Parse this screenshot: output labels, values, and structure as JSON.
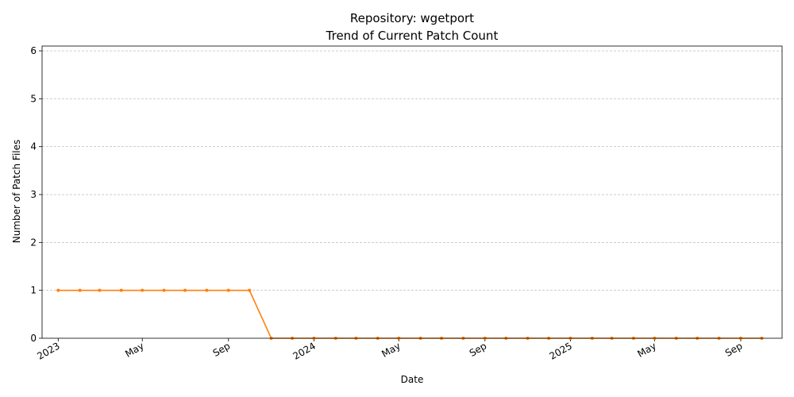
{
  "chart_data": {
    "type": "line",
    "title": "Repository: wgetport",
    "subtitle": "Trend of Current Patch Count",
    "xlabel": "Date",
    "ylabel": "Number of Patch Files",
    "ylim": [
      0,
      6.1
    ],
    "yticks": [
      0,
      1,
      2,
      3,
      4,
      5,
      6
    ],
    "xlim": [
      "2022-12-09",
      "2025-10-30"
    ],
    "xticks": [
      {
        "date": "2023-01-01",
        "label": "2023"
      },
      {
        "date": "2023-05-01",
        "label": "May"
      },
      {
        "date": "2023-09-01",
        "label": "Sep"
      },
      {
        "date": "2024-01-01",
        "label": "2024"
      },
      {
        "date": "2024-05-01",
        "label": "May"
      },
      {
        "date": "2024-09-01",
        "label": "Sep"
      },
      {
        "date": "2025-01-01",
        "label": "2025"
      },
      {
        "date": "2025-05-01",
        "label": "May"
      },
      {
        "date": "2025-09-01",
        "label": "Sep"
      }
    ],
    "grid": "y",
    "line_color": "#ff7f0e",
    "series": [
      {
        "points": [
          {
            "x": "2023-01-01",
            "y": 1
          },
          {
            "x": "2023-02-01",
            "y": 1
          },
          {
            "x": "2023-03-01",
            "y": 1
          },
          {
            "x": "2023-04-01",
            "y": 1
          },
          {
            "x": "2023-05-01",
            "y": 1
          },
          {
            "x": "2023-06-01",
            "y": 1
          },
          {
            "x": "2023-07-01",
            "y": 1
          },
          {
            "x": "2023-08-01",
            "y": 1
          },
          {
            "x": "2023-09-01",
            "y": 1
          },
          {
            "x": "2023-10-01",
            "y": 1
          },
          {
            "x": "2023-11-01",
            "y": 0
          },
          {
            "x": "2023-12-01",
            "y": 0
          },
          {
            "x": "2024-01-01",
            "y": 0
          },
          {
            "x": "2024-02-01",
            "y": 0
          },
          {
            "x": "2024-03-01",
            "y": 0
          },
          {
            "x": "2024-04-01",
            "y": 0
          },
          {
            "x": "2024-05-01",
            "y": 0
          },
          {
            "x": "2024-06-01",
            "y": 0
          },
          {
            "x": "2024-07-01",
            "y": 0
          },
          {
            "x": "2024-08-01",
            "y": 0
          },
          {
            "x": "2024-09-01",
            "y": 0
          },
          {
            "x": "2024-10-01",
            "y": 0
          },
          {
            "x": "2024-11-01",
            "y": 0
          },
          {
            "x": "2024-12-01",
            "y": 0
          },
          {
            "x": "2025-01-01",
            "y": 0
          },
          {
            "x": "2025-02-01",
            "y": 0
          },
          {
            "x": "2025-03-01",
            "y": 0
          },
          {
            "x": "2025-04-01",
            "y": 0
          },
          {
            "x": "2025-05-01",
            "y": 0
          },
          {
            "x": "2025-06-01",
            "y": 0
          },
          {
            "x": "2025-07-01",
            "y": 0
          },
          {
            "x": "2025-08-01",
            "y": 0
          },
          {
            "x": "2025-09-01",
            "y": 0
          },
          {
            "x": "2025-10-01",
            "y": 0
          }
        ]
      }
    ]
  }
}
